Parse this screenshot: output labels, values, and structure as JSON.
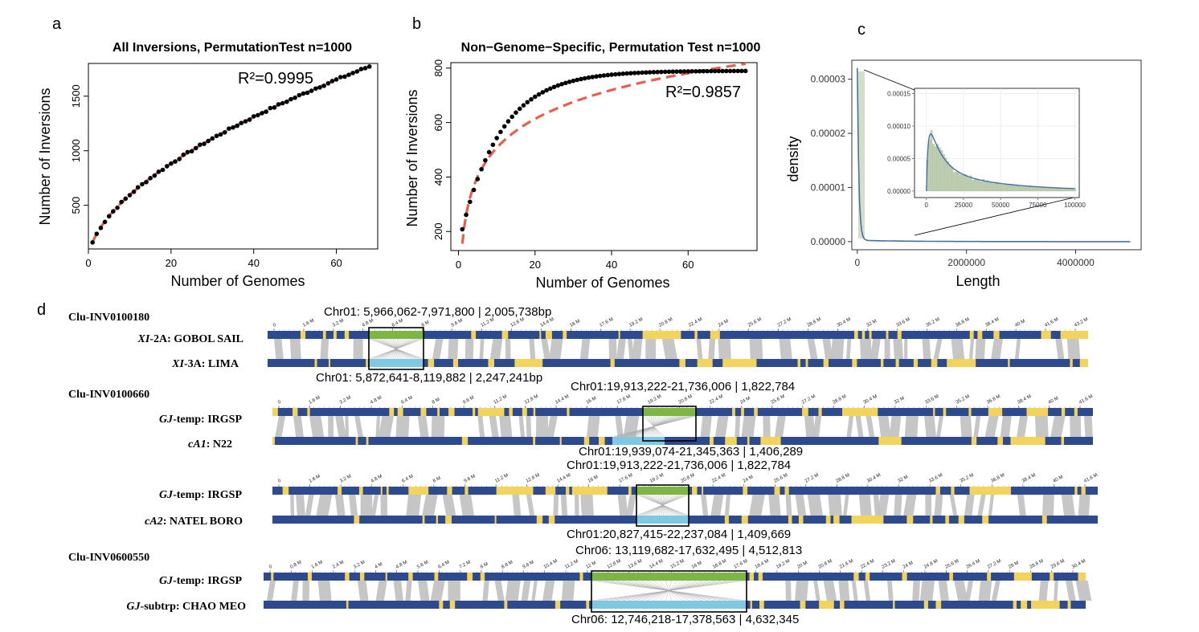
{
  "panels": {
    "a": "a",
    "b": "b",
    "c": "c",
    "d": "d"
  },
  "colors": {
    "points": "#000000",
    "fit_line": "#e8604c",
    "density_line": "#4a6fa5",
    "hist_fill": "#bfd0b0",
    "chrom_blue": "#2e4a8e",
    "chrom_yellow": "#f2d35c",
    "inv_green": "#7db644",
    "inv_cyan": "#7ec8e3",
    "synteny_gray": "#c0c0c0",
    "box": "#000000"
  },
  "chart_data": [
    {
      "panel": "a",
      "type": "scatter",
      "title": "All Inversions, PermutationTest n=1000",
      "xlabel": "Number of Genomes",
      "ylabel": "Number of Inversions",
      "annotation": "R²=0.9995",
      "xlim": [
        0,
        70
      ],
      "ylim": [
        100,
        1800
      ],
      "xticks": [
        0,
        20,
        40,
        60
      ],
      "yticks": [
        500,
        1000,
        1500
      ],
      "x_range": [
        1,
        68
      ],
      "fit": {
        "type": "power",
        "a": 160,
        "b": 0.57
      },
      "points_approx": "y ≈ 160·x^0.57 for x = 1..68"
    },
    {
      "panel": "b",
      "type": "scatter",
      "title": "Non−Genome−Specific, Permutation Test n=1000",
      "xlabel": "Number of Genomes",
      "ylabel": "Number of Inversions",
      "annotation": "R²=0.9857",
      "xlim": [
        -2,
        78
      ],
      "ylim": [
        130,
        820
      ],
      "xticks": [
        0,
        20,
        40,
        60
      ],
      "yticks": [
        200,
        400,
        600,
        800
      ],
      "x_range": [
        1,
        75
      ],
      "fit": {
        "type": "log",
        "a": 155,
        "b": 153
      },
      "points_approx": "y ≈ 790 − 640·exp(−x/10.5)"
    },
    {
      "panel": "c",
      "type": "line",
      "xlabel": "Length",
      "ylabel": "density",
      "xlim": [
        -100000,
        5200000
      ],
      "ylim": [
        -1.5e-06,
        3.35e-05
      ],
      "xticks": [
        "0",
        "2000000",
        "4000000"
      ],
      "yticks": [
        "0.00000",
        "0.00001",
        "0.00002",
        "0.00003"
      ],
      "peak": 3.18e-05,
      "inset": {
        "xlim": [
          -8000,
          103000
        ],
        "ylim": [
          -1e-05,
          0.000158
        ],
        "xticks": [
          "0",
          "25000",
          "50000",
          "75000",
          "100000"
        ],
        "yticks": [
          "0.00000",
          "0.00005",
          "0.00010",
          "0.00015"
        ],
        "peak": 8.5e-05
      }
    }
  ],
  "genome_panel": {
    "blocks": [
      {
        "title": "Clu-INV0100180",
        "top_label_prefix": "XI",
        "top_label_suffix": "-2A: GOBOL SAIL",
        "bottom_label_prefix": "XI",
        "bottom_label_suffix": "-3A: LIMA",
        "top_coord": "Chr01: 5,966,062-7,971,800 | 2,005,738bp",
        "bottom_coord": "Chr01: 5,872,641-8,119,882 | 2,247,241bp",
        "ticks": [
          "0",
          "1.6 M",
          "3.2 M",
          "4.8 M",
          "6.4 M",
          "8 M",
          "9.6 M",
          "11.2 M",
          "12.8 M",
          "14.4 M",
          "16 M",
          "17.6 M",
          "19.2 M",
          "20.8 M",
          "22.4 M",
          "24 M",
          "25.6 M",
          "27.2 M",
          "28.8 M",
          "30.4 M",
          "32 M",
          "33.6 M",
          "35.2 M",
          "36.8 M",
          "38.4 M",
          "40 M",
          "41.6 M",
          "43.2 M"
        ]
      },
      {
        "title": "Clu-INV0100660",
        "top_label_prefix": "GJ",
        "top_label_suffix": "-temp: IRGSP",
        "bottom_label_prefix": "cA1",
        "bottom_label_suffix": ": N22",
        "top_coord": "Chr01:19,913,222-21,736,006 | 1,822,784",
        "bottom_coord": "Chr01:19,939,074-21,345,363 | 1,406,289",
        "ticks": [
          "0",
          "1.6 M",
          "3.2 M",
          "4.8 M",
          "6.4 M",
          "8 M",
          "9.6 M",
          "11.2 M",
          "12.8 M",
          "14.4 M",
          "16 M",
          "17.6 M",
          "19.2 M",
          "20.8 M",
          "22.4 M",
          "24 M",
          "25.6 M",
          "27.2 M",
          "28.8 M",
          "30.4 M",
          "32 M",
          "33.6 M",
          "35.2 M",
          "36.8 M",
          "38.4 M",
          "40 M",
          "41.6 M"
        ]
      },
      {
        "title": "",
        "top_label_prefix": "GJ",
        "top_label_suffix": "-temp: IRGSP",
        "bottom_label_prefix": "cA2",
        "bottom_label_suffix": ": NATEL BORO",
        "top_coord": "Chr01:19,913,222-21,736,006 | 1,822,784",
        "bottom_coord": "Chr01:20,827,415-22,237,084 | 1,409,669",
        "ticks": [
          "0",
          "1.6 M",
          "3.2 M",
          "4.8 M",
          "6.4 M",
          "8 M",
          "9.6 M",
          "11.2 M",
          "12.8 M",
          "14.4 M",
          "16 M",
          "17.6 M",
          "19.2 M",
          "20.8 M",
          "22.4 M",
          "24 M",
          "25.6 M",
          "27.2 M",
          "28.8 M",
          "30.4 M",
          "32 M",
          "33.6 M",
          "35.2 M",
          "36.8 M",
          "38.4 M",
          "40 M",
          "41.6 M"
        ]
      },
      {
        "title": "Clu-INV0600550",
        "top_label_prefix": "GJ",
        "top_label_suffix": "-temp: IRGSP",
        "bottom_label_prefix": "GJ",
        "bottom_label_suffix": "-subtrp: CHAO MEO",
        "top_coord": "Chr06: 13,119,682-17,632,495 | 4,512,813",
        "bottom_coord": "Chr06: 12,746,218-17,378,563 | 4,632,345",
        "ticks": [
          "0",
          "0.8 M",
          "1.6 M",
          "2.4 M",
          "3.2 M",
          "4 M",
          "4.8 M",
          "5.6 M",
          "6.4 M",
          "7.2 M",
          "8 M",
          "8.8 M",
          "9.6 M",
          "10.4 M",
          "11.2 M",
          "12 M",
          "12.8 M",
          "13.6 M",
          "14.4 M",
          "15.2 M",
          "16 M",
          "16.8 M",
          "17.6 M",
          "18.4 M",
          "19.2 M",
          "20 M",
          "20.8 M",
          "21.6 M",
          "22.4 M",
          "23.2 M",
          "24 M",
          "24.8 M",
          "25.6 M",
          "26.4 M",
          "27.2 M",
          "28 M",
          "28.8 M",
          "29.6 M",
          "30.4 M"
        ]
      }
    ]
  }
}
